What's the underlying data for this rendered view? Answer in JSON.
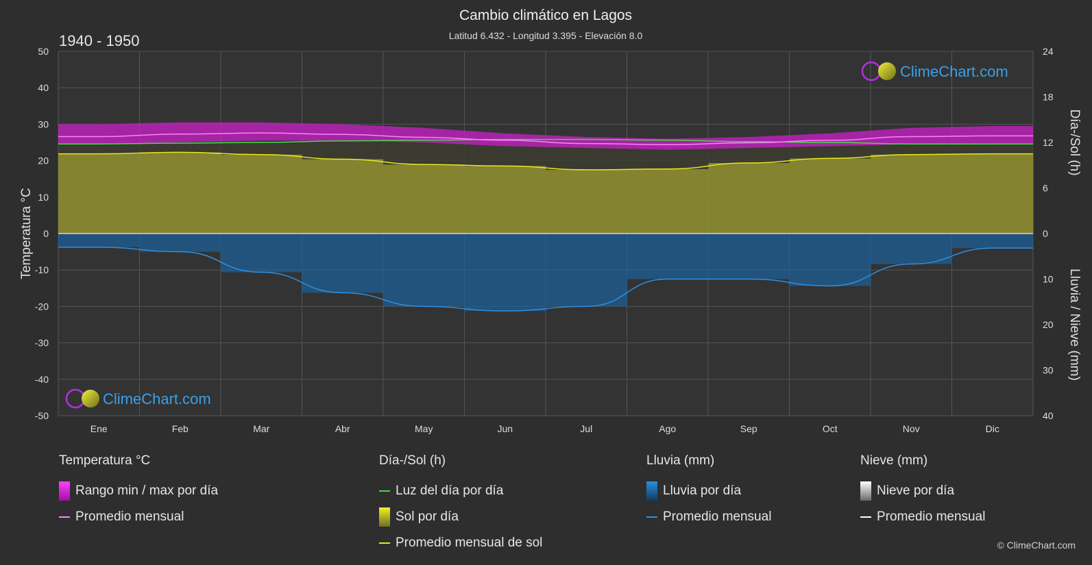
{
  "header": {
    "title": "Cambio climático en Lagos",
    "subtitle": "Latitud 6.432 - Longitud 3.395 - Elevación 8.0",
    "period": "1940 - 1950"
  },
  "brand": {
    "logo_text": "ClimeChart.com",
    "copyright": "© ClimeChart.com"
  },
  "colors": {
    "background": "#2e2e2e",
    "temp_range": "#c020c0",
    "temp_avg": "#ff80ff",
    "daylight": "#44dd44",
    "sun_fill": "#8c8c30",
    "sun_avg": "#e8e820",
    "rain_fill": "#1e5f96",
    "rain_avg": "#2e90e0",
    "snow_avg": "#ffffff"
  },
  "chart_data": {
    "type": "area",
    "x_categories": [
      "Ene",
      "Feb",
      "Mar",
      "Abr",
      "May",
      "Jun",
      "Jul",
      "Ago",
      "Sep",
      "Oct",
      "Nov",
      "Dic"
    ],
    "left_axis": {
      "label": "Temperatura °C",
      "range": [
        -50,
        50
      ],
      "ticks": [
        50,
        40,
        30,
        20,
        10,
        0,
        -10,
        -20,
        -30,
        -40,
        -50
      ]
    },
    "right_axis_top": {
      "label": "Día-/Sol (h)",
      "range": [
        0,
        24
      ],
      "ticks": [
        24,
        18,
        12,
        6,
        0
      ]
    },
    "right_axis_bottom": {
      "label": "Lluvia / Nieve (mm)",
      "range": [
        0,
        40
      ],
      "ticks": [
        0,
        10,
        20,
        30,
        40
      ]
    },
    "grid": true,
    "series": [
      {
        "name": "Rango min / max por día",
        "unit": "°C",
        "min": [
          24.5,
          25.0,
          25.5,
          25.5,
          25.0,
          24.0,
          23.5,
          23.0,
          23.5,
          24.0,
          24.5,
          24.5
        ],
        "max": [
          30.0,
          30.5,
          30.5,
          30.0,
          29.0,
          27.5,
          26.5,
          26.0,
          26.5,
          27.5,
          29.0,
          29.5
        ]
      },
      {
        "name": "Promedio mensual",
        "unit": "°C",
        "values": [
          26.6,
          27.3,
          27.6,
          27.2,
          26.4,
          25.6,
          24.7,
          24.4,
          24.9,
          25.6,
          26.6,
          26.8
        ]
      },
      {
        "name": "Luz del día por día",
        "unit": "h",
        "values": [
          11.8,
          11.9,
          12.0,
          12.2,
          12.3,
          12.4,
          12.4,
          12.3,
          12.1,
          12.0,
          11.8,
          11.8
        ]
      },
      {
        "name": "Sol por día",
        "unit": "h",
        "values": [
          10.5,
          10.7,
          10.4,
          9.8,
          9.1,
          8.9,
          8.4,
          8.5,
          9.3,
          9.9,
          10.4,
          10.5
        ]
      },
      {
        "name": "Promedio mensual de sol",
        "unit": "h",
        "values": [
          10.5,
          10.7,
          10.4,
          9.8,
          9.1,
          8.9,
          8.4,
          8.5,
          9.3,
          9.9,
          10.4,
          10.5
        ]
      },
      {
        "name": "Lluvia por día",
        "unit": "mm",
        "values": [
          3.0,
          4.0,
          8.5,
          13.0,
          16.0,
          17.0,
          16.0,
          10.0,
          10.0,
          11.5,
          6.7,
          3.2
        ]
      },
      {
        "name": "Promedio mensual",
        "unit": "mm",
        "values": [
          3.0,
          4.0,
          8.5,
          13.0,
          16.0,
          17.0,
          16.0,
          10.0,
          10.0,
          11.5,
          6.7,
          3.2
        ]
      },
      {
        "name": "Nieve por día",
        "unit": "mm",
        "values": [
          0,
          0,
          0,
          0,
          0,
          0,
          0,
          0,
          0,
          0,
          0,
          0
        ]
      },
      {
        "name": "Promedio mensual",
        "unit": "mm",
        "values": [
          0,
          0,
          0,
          0,
          0,
          0,
          0,
          0,
          0,
          0,
          0,
          0
        ]
      }
    ]
  },
  "legend": {
    "temperature": {
      "heading": "Temperatura °C",
      "range": "Rango min / max por día",
      "avg": "Promedio mensual"
    },
    "sun": {
      "heading": "Día-/Sol (h)",
      "daylight": "Luz del día por día",
      "sun": "Sol por día",
      "avg": "Promedio mensual de sol"
    },
    "rain": {
      "heading": "Lluvia (mm)",
      "rain": "Lluvia por día",
      "avg": "Promedio mensual"
    },
    "snow": {
      "heading": "Nieve (mm)",
      "snow": "Nieve por día",
      "avg": "Promedio mensual"
    }
  }
}
